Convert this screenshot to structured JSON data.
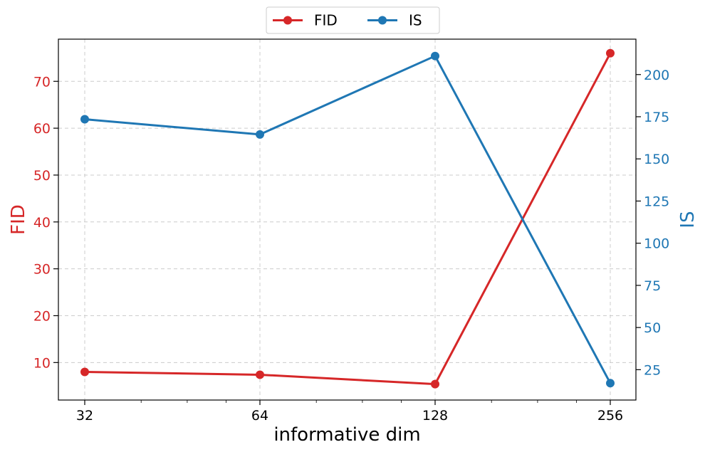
{
  "chart_data": {
    "type": "line",
    "x": [
      32,
      64,
      128,
      256
    ],
    "x_tick_labels": [
      "32",
      "64",
      "128",
      "256"
    ],
    "x_scale": "log2",
    "xlabel": "informative dim",
    "ylabel_left": "FID",
    "ylabel_right": "IS",
    "ylim_left": [
      2,
      79
    ],
    "ylim_right": [
      7,
      221
    ],
    "y_ticks_left": [
      10,
      20,
      30,
      40,
      50,
      60,
      70
    ],
    "y_ticks_right": [
      25,
      50,
      75,
      100,
      125,
      150,
      175,
      200
    ],
    "grid": true,
    "legend_placement": "top-center",
    "series": [
      {
        "name": "FID",
        "axis": "left",
        "color": "#d62728",
        "values": [
          8.0,
          7.4,
          5.4,
          76.0
        ]
      },
      {
        "name": "IS",
        "axis": "right",
        "color": "#1f77b4",
        "values": [
          173.5,
          164.5,
          211.0,
          17.0
        ]
      }
    ]
  }
}
